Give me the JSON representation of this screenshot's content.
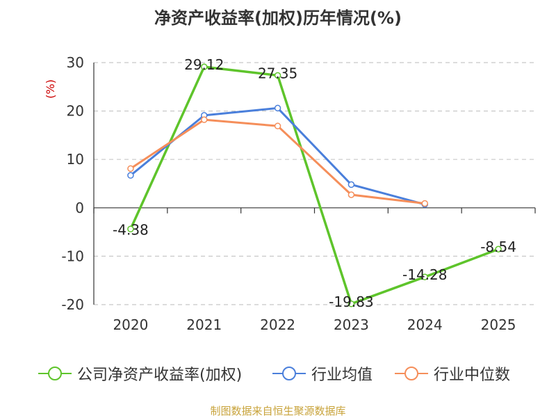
{
  "title": "净资产收益率(加权)历年情况(%)",
  "source": "制图数据来自恒生聚源数据库",
  "colors": {
    "company": "#5ec42b",
    "industry_avg": "#4a7fdb",
    "industry_median": "#f58e5a"
  },
  "chart_data": {
    "type": "line",
    "title": "净资产收益率(加权)历年情况(%)",
    "ylabel": "(%)",
    "xlabel": "",
    "ylim": [
      -20,
      30
    ],
    "yticks": [
      30,
      20,
      10,
      0,
      -10,
      -20
    ],
    "ytick_labels": [
      "30",
      "20",
      "10",
      "0",
      "-10",
      "-20"
    ],
    "categories": [
      "2020",
      "2021",
      "2022",
      "2023",
      "2024",
      "2025"
    ],
    "grid": true,
    "legend_position": "bottom",
    "series": [
      {
        "name": "公司净资产收益率(加权)",
        "color": "#5ec42b",
        "values": [
          -4.38,
          29.12,
          27.35,
          -19.83,
          -14.28,
          -8.54
        ],
        "labels": [
          "-4.38",
          "29.12",
          "27.35",
          "-19.83",
          "-14.28",
          "-8.54"
        ]
      },
      {
        "name": "行业均值",
        "color": "#4a7fdb",
        "values": [
          6.7,
          19.1,
          20.6,
          4.8,
          0.7,
          null
        ]
      },
      {
        "name": "行业中位数",
        "color": "#f58e5a",
        "values": [
          8.1,
          18.2,
          16.9,
          2.7,
          0.9,
          null
        ]
      }
    ]
  }
}
